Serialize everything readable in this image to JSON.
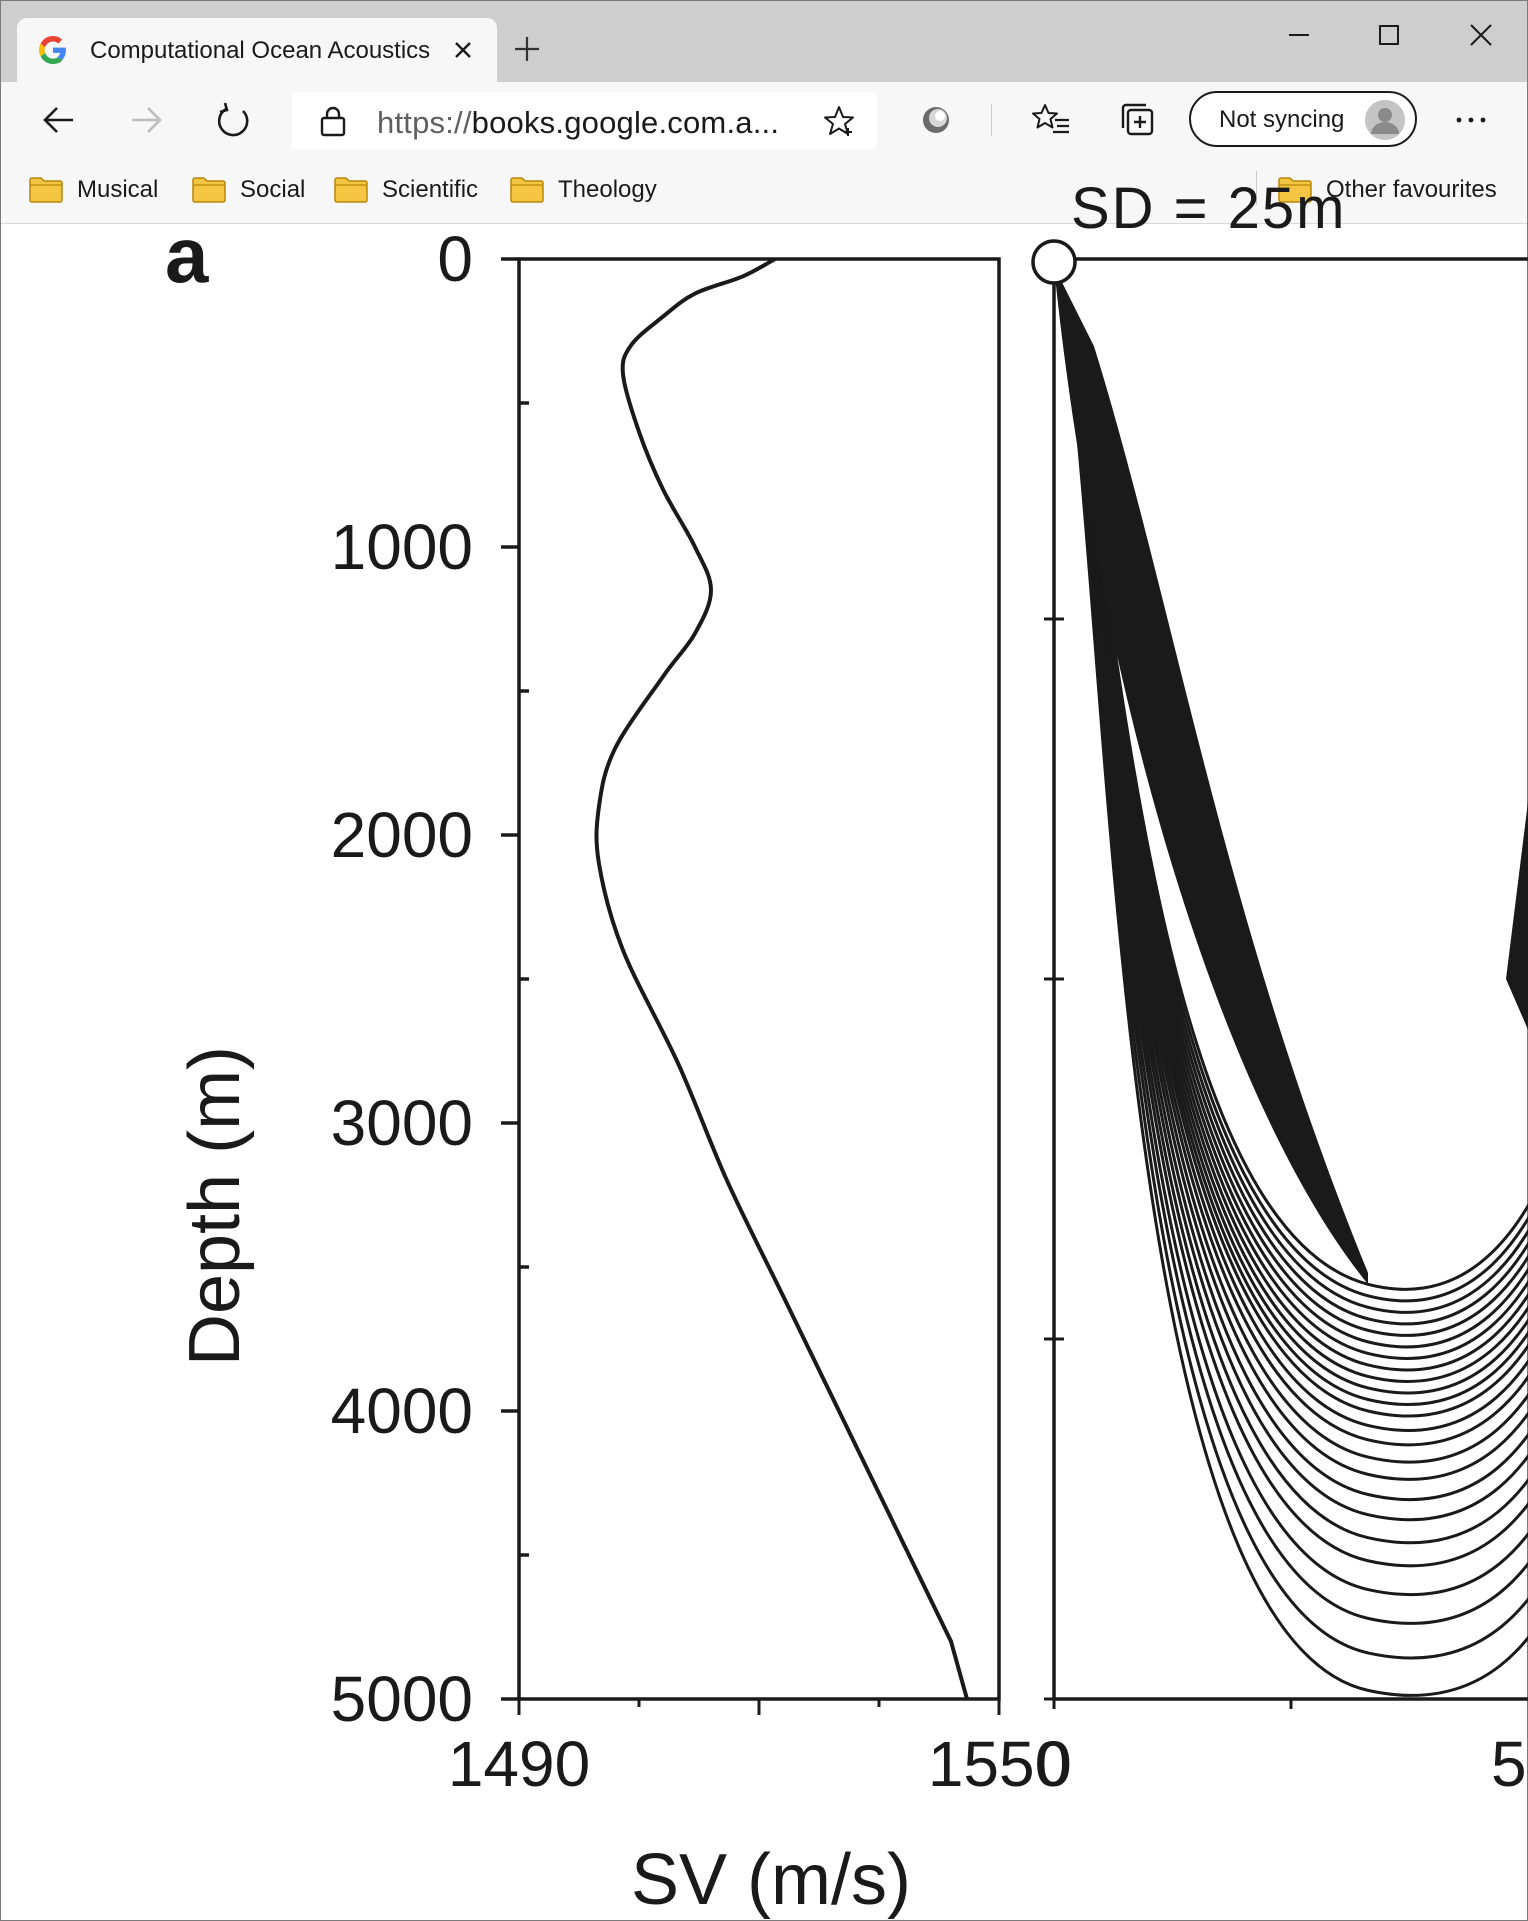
{
  "browser": {
    "tab": {
      "title": "Computational Ocean Acoustics",
      "favicon": "google-g-icon"
    },
    "address": {
      "scheme": "https://",
      "rest": "books.google.com.a..."
    },
    "sync_label": "Not syncing",
    "bookmarks": [
      {
        "label": "Musical"
      },
      {
        "label": "Social"
      },
      {
        "label": "Scientific"
      },
      {
        "label": "Theology"
      }
    ],
    "other_favourites": "Other favourites"
  },
  "figure": {
    "panel_label": "a",
    "top_cut_label": "SD = 25m",
    "colors": {
      "ink": "#1a1a1a",
      "source_fill": "#ffffff"
    }
  },
  "chart_data": [
    {
      "type": "line",
      "xlabel": "SV (m/s)",
      "ylabel": "Depth (m)",
      "xlim": [
        1490,
        1550
      ],
      "ylim": [
        5000,
        0
      ],
      "x_ticks": [
        1490,
        1550
      ],
      "y_ticks": [
        0,
        1000,
        2000,
        3000,
        4000,
        5000
      ],
      "series": [
        {
          "x": [
            1522,
            1518,
            1512,
            1508,
            1504,
            1503,
            1505,
            1508,
            1512,
            1514,
            1512,
            1508,
            1502,
            1500,
            1500,
            1503,
            1510,
            1516,
            1523,
            1530,
            1537,
            1544
          ],
          "y": [
            0,
            60,
            120,
            200,
            300,
            400,
            600,
            800,
            1000,
            1150,
            1300,
            1450,
            1700,
            1900,
            2100,
            2400,
            2800,
            3200,
            3600,
            4000,
            4400,
            4800
          ]
        }
      ]
    },
    {
      "type": "line",
      "x_ticks_visible": [
        "0",
        "5"
      ],
      "ylim": [
        5000,
        0
      ],
      "source_depth": 25,
      "turning_depths": [
        3560,
        3600,
        3640,
        3680,
        3720,
        3760,
        3800,
        3840,
        3880,
        3920,
        3960,
        4000,
        4050,
        4100,
        4160,
        4220,
        4290,
        4360,
        4440,
        4520,
        4620,
        4720,
        4840,
        4970
      ]
    }
  ]
}
